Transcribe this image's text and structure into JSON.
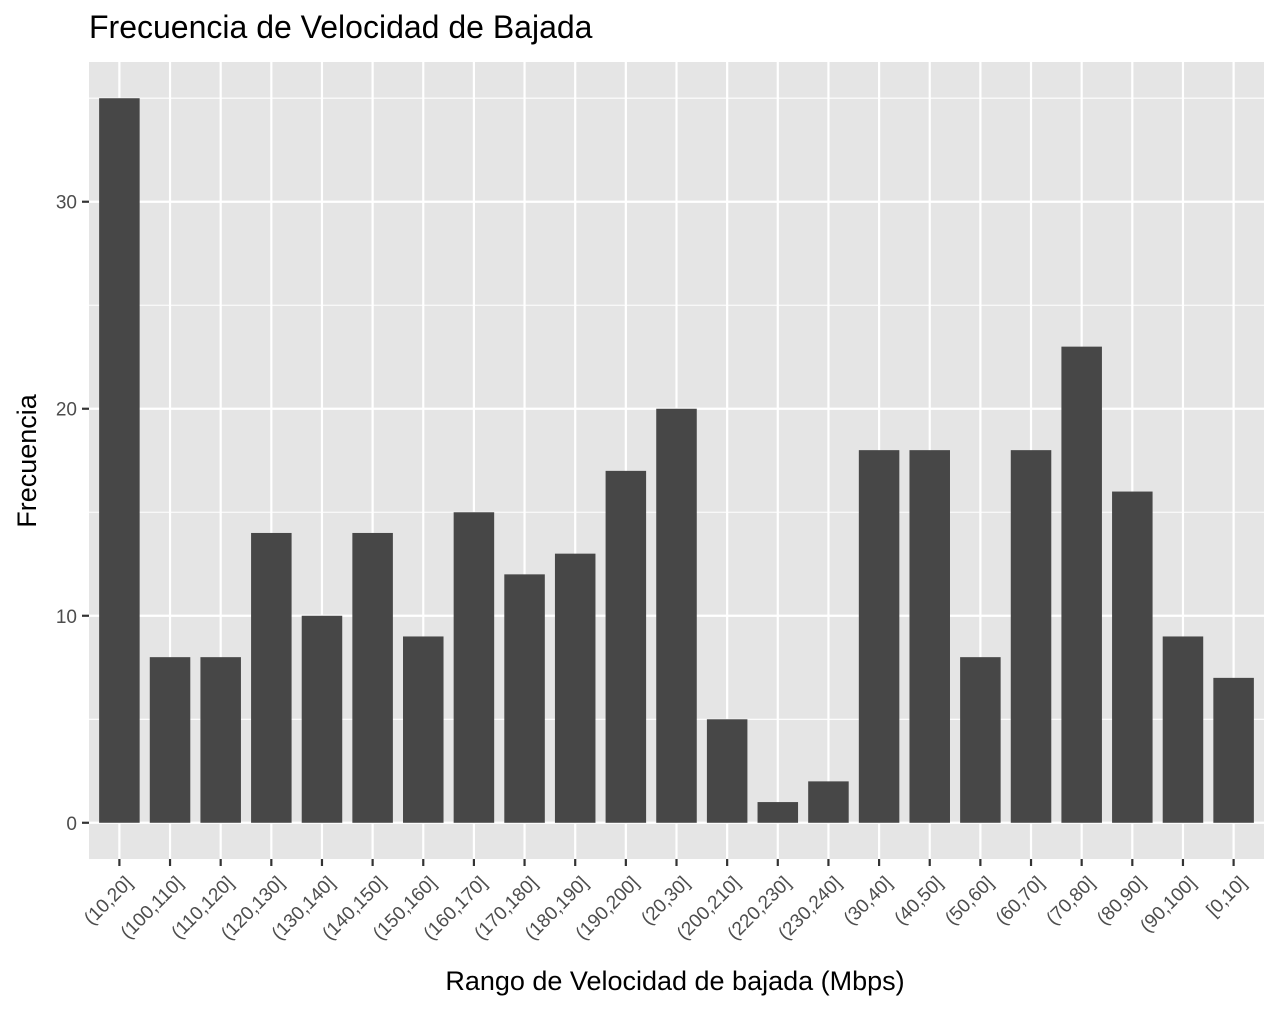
{
  "chart_data": {
    "type": "bar",
    "title": "Frecuencia de Velocidad de Bajada",
    "xlabel": "Rango de Velocidad de bajada (Mbps)",
    "ylabel": "Frecuencia",
    "categories": [
      "(10,20]",
      "(100,110]",
      "(110,120]",
      "(120,130]",
      "(130,140]",
      "(140,150]",
      "(150,160]",
      "(160,170]",
      "(170,180]",
      "(180,190]",
      "(190,200]",
      "(20,30]",
      "(200,210]",
      "(220,230]",
      "(230,240]",
      "(30,40]",
      "(40,50]",
      "(50,60]",
      "(60,70]",
      "(70,80]",
      "(80,90]",
      "(90,100]",
      "[0,10]"
    ],
    "values": [
      35,
      8,
      8,
      14,
      10,
      14,
      9,
      15,
      12,
      13,
      17,
      20,
      5,
      1,
      2,
      18,
      18,
      8,
      18,
      23,
      16,
      9,
      7
    ],
    "yticks": [
      0,
      10,
      20,
      30
    ],
    "ylim": [
      -1.75,
      36.75
    ],
    "grid": true,
    "colors": {
      "bar": "#474747",
      "panel": "#e5e5e5",
      "grid": "#ffffff"
    }
  }
}
